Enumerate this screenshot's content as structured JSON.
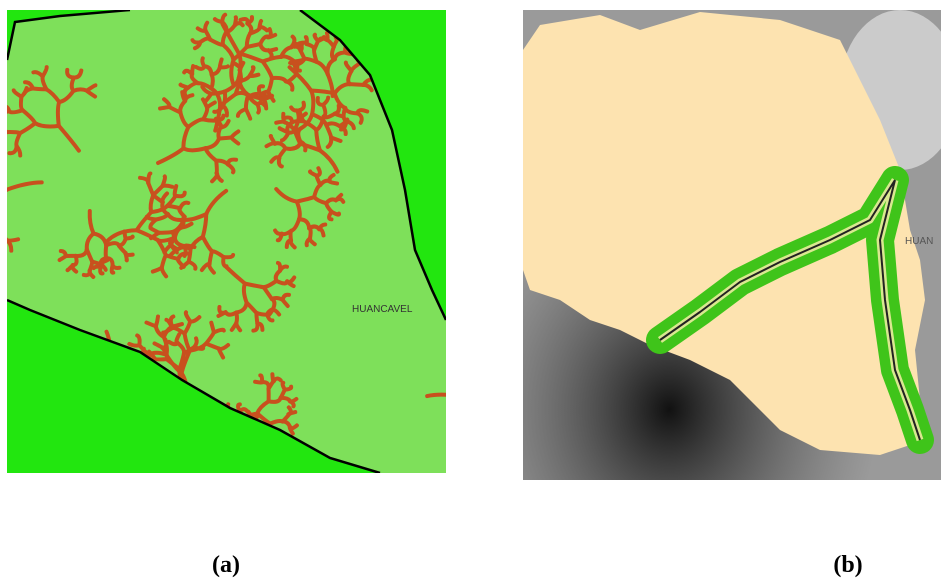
{
  "panels": [
    {
      "place_label": "HUANCAVEL",
      "caption": "(a)"
    },
    {
      "place_label": "HUAN",
      "caption": "(b)"
    }
  ]
}
